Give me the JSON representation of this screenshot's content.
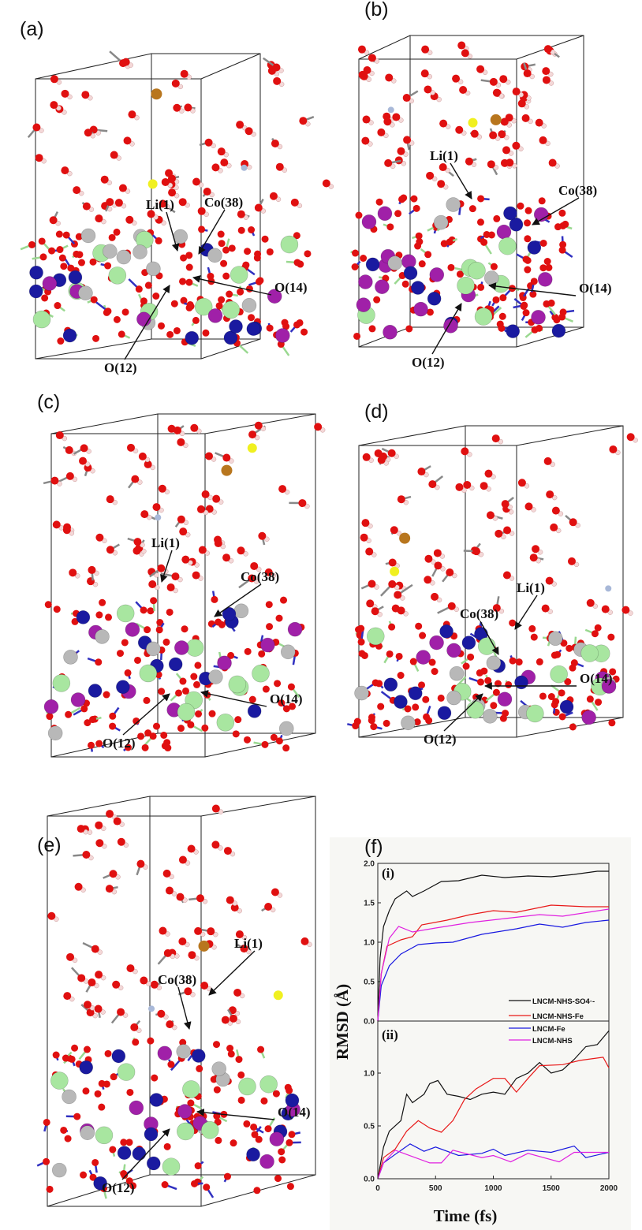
{
  "panels": [
    {
      "id": "a",
      "label": "(a)",
      "annotations": [
        "Li(1)",
        "Co(38)",
        "O(14)",
        "O(12)"
      ]
    },
    {
      "id": "b",
      "label": "(b)",
      "annotations": [
        "Li(1)",
        "Co(38)",
        "O(14)",
        "O(12)"
      ]
    },
    {
      "id": "c",
      "label": "(c)",
      "annotations": [
        "Li(1)",
        "Co(38)",
        "O(14)",
        "O(12)"
      ]
    },
    {
      "id": "d",
      "label": "(d)",
      "annotations": [
        "Li(1)",
        "Co(38)",
        "O(14)",
        "O(12)"
      ]
    },
    {
      "id": "e",
      "label": "(e)",
      "annotations": [
        "Li(1)",
        "Co(38)",
        "O(14)",
        "O(12)"
      ]
    }
  ],
  "colors": {
    "Li": "#a8e6a0",
    "Co": "#1a1aa0",
    "Ni": "#b8b8b8",
    "Mn": "#a020a8",
    "O": "#e01010",
    "H": "#f4d8d8",
    "S": "#f0f020",
    "Fe": "#b8761e",
    "N": "#a8b8d8"
  },
  "chart_data": {
    "type": "line",
    "panel_label": "(f)",
    "xlabel": "Time (fs)",
    "ylabel": "RMSD (Å)",
    "xlim": [
      0,
      2000
    ],
    "xticks": [
      "0",
      "500",
      "1000",
      "1500",
      "2000"
    ],
    "legend": [
      "LNCM-NHS-SO4·-",
      "LNCM-NHS-Fe",
      "LNCM-Fe",
      "LNCM-NHS"
    ],
    "legend_placement": "center-right",
    "series_colors": [
      "#111111",
      "#e81818",
      "#1818e0",
      "#e020e0"
    ],
    "subplots": [
      {
        "label": "(i)",
        "ylim": [
          0,
          2.0
        ],
        "yticks": [
          "0.0",
          "0.5",
          "1.0",
          "1.5",
          "2.0"
        ],
        "series": [
          {
            "name": "LNCM-NHS-SO4·-",
            "points": [
              [
                0,
                0
              ],
              [
                20,
                0.8
              ],
              [
                50,
                1.2
              ],
              [
                100,
                1.4
              ],
              [
                150,
                1.55
              ],
              [
                250,
                1.65
              ],
              [
                300,
                1.58
              ],
              [
                400,
                1.65
              ],
              [
                550,
                1.77
              ],
              [
                700,
                1.78
              ],
              [
                900,
                1.85
              ],
              [
                1100,
                1.82
              ],
              [
                1300,
                1.84
              ],
              [
                1500,
                1.83
              ],
              [
                1700,
                1.86
              ],
              [
                1900,
                1.9
              ],
              [
                2000,
                1.9
              ]
            ]
          },
          {
            "name": "LNCM-NHS-Fe",
            "points": [
              [
                0,
                0
              ],
              [
                30,
                0.6
              ],
              [
                80,
                0.95
              ],
              [
                200,
                1.03
              ],
              [
                300,
                1.07
              ],
              [
                380,
                1.22
              ],
              [
                600,
                1.28
              ],
              [
                800,
                1.35
              ],
              [
                1000,
                1.4
              ],
              [
                1200,
                1.38
              ],
              [
                1500,
                1.47
              ],
              [
                1800,
                1.45
              ],
              [
                2000,
                1.45
              ]
            ]
          },
          {
            "name": "LNCM-Fe",
            "points": [
              [
                0,
                0
              ],
              [
                30,
                0.45
              ],
              [
                100,
                0.7
              ],
              [
                200,
                0.85
              ],
              [
                350,
                0.97
              ],
              [
                500,
                0.99
              ],
              [
                650,
                1.0
              ],
              [
                900,
                1.1
              ],
              [
                1200,
                1.17
              ],
              [
                1400,
                1.23
              ],
              [
                1600,
                1.19
              ],
              [
                1800,
                1.25
              ],
              [
                2000,
                1.28
              ]
            ]
          },
          {
            "name": "LNCM-NHS",
            "points": [
              [
                0,
                0
              ],
              [
                30,
                0.6
              ],
              [
                100,
                1.05
              ],
              [
                180,
                1.2
              ],
              [
                300,
                1.13
              ],
              [
                500,
                1.18
              ],
              [
                800,
                1.25
              ],
              [
                1100,
                1.3
              ],
              [
                1400,
                1.35
              ],
              [
                1600,
                1.33
              ],
              [
                2000,
                1.42
              ]
            ]
          }
        ]
      },
      {
        "label": "(ii)",
        "ylim": [
          0,
          1.5
        ],
        "yticks": [
          "0.0",
          "0.5",
          "1.0"
        ],
        "series": [
          {
            "name": "LNCM-NHS-SO4·-",
            "points": [
              [
                0,
                0
              ],
              [
                50,
                0.3
              ],
              [
                100,
                0.45
              ],
              [
                200,
                0.55
              ],
              [
                250,
                0.8
              ],
              [
                300,
                0.72
              ],
              [
                400,
                0.8
              ],
              [
                450,
                0.9
              ],
              [
                520,
                0.93
              ],
              [
                600,
                0.8
              ],
              [
                700,
                0.78
              ],
              [
                800,
                0.75
              ],
              [
                900,
                0.8
              ],
              [
                1000,
                0.82
              ],
              [
                1100,
                0.8
              ],
              [
                1200,
                0.95
              ],
              [
                1300,
                1.0
              ],
              [
                1400,
                1.1
              ],
              [
                1500,
                1.0
              ],
              [
                1600,
                1.03
              ],
              [
                1700,
                1.13
              ],
              [
                1800,
                1.25
              ],
              [
                1900,
                1.27
              ],
              [
                2000,
                1.4
              ]
            ]
          },
          {
            "name": "LNCM-NHS-Fe",
            "points": [
              [
                0,
                0
              ],
              [
                50,
                0.2
              ],
              [
                150,
                0.28
              ],
              [
                250,
                0.45
              ],
              [
                350,
                0.55
              ],
              [
                450,
                0.48
              ],
              [
                550,
                0.44
              ],
              [
                650,
                0.55
              ],
              [
                750,
                0.75
              ],
              [
                850,
                0.85
              ],
              [
                1000,
                0.95
              ],
              [
                1100,
                0.95
              ],
              [
                1200,
                0.82
              ],
              [
                1300,
                0.95
              ],
              [
                1400,
                1.07
              ],
              [
                1600,
                1.08
              ],
              [
                1750,
                1.12
              ],
              [
                1950,
                1.15
              ],
              [
                2000,
                1.05
              ]
            ]
          },
          {
            "name": "LNCM-Fe",
            "points": [
              [
                0,
                0
              ],
              [
                50,
                0.15
              ],
              [
                150,
                0.23
              ],
              [
                280,
                0.33
              ],
              [
                400,
                0.26
              ],
              [
                500,
                0.3
              ],
              [
                700,
                0.22
              ],
              [
                900,
                0.24
              ],
              [
                1000,
                0.28
              ],
              [
                1100,
                0.22
              ],
              [
                1300,
                0.27
              ],
              [
                1500,
                0.25
              ],
              [
                1700,
                0.31
              ],
              [
                1800,
                0.2
              ],
              [
                2000,
                0.25
              ]
            ]
          },
          {
            "name": "LNCM-NHS",
            "points": [
              [
                0,
                0
              ],
              [
                50,
                0.15
              ],
              [
                150,
                0.27
              ],
              [
                250,
                0.23
              ],
              [
                450,
                0.15
              ],
              [
                550,
                0.15
              ],
              [
                650,
                0.27
              ],
              [
                900,
                0.2
              ],
              [
                1000,
                0.22
              ],
              [
                1150,
                0.16
              ],
              [
                1300,
                0.24
              ],
              [
                1570,
                0.16
              ],
              [
                1700,
                0.25
              ],
              [
                2000,
                0.25
              ]
            ]
          }
        ]
      }
    ]
  }
}
